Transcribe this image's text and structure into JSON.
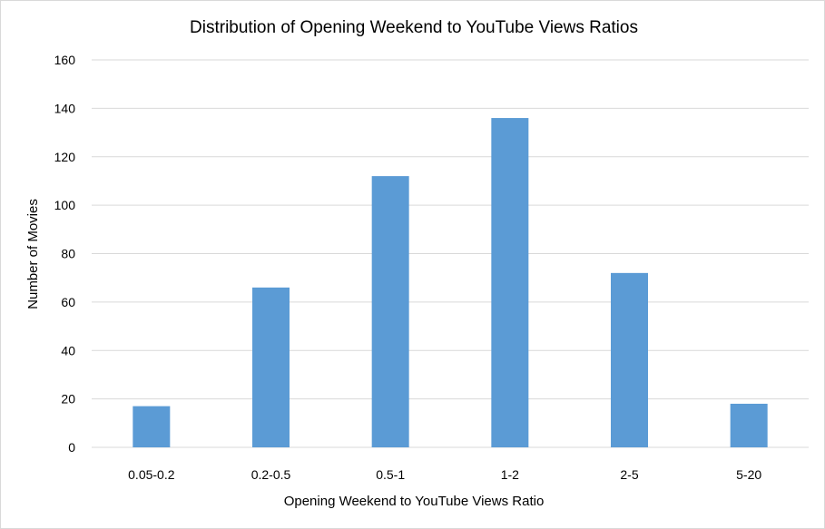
{
  "chart_data": {
    "type": "bar",
    "title": "Distribution of Opening Weekend to YouTube Views Ratios",
    "xlabel": "Opening Weekend to YouTube Views Ratio",
    "ylabel": "Number of Movies",
    "categories": [
      "0.05-0.2",
      "0.2-0.5",
      "0.5-1",
      "1-2",
      "2-5",
      "5-20"
    ],
    "values": [
      17,
      66,
      112,
      136,
      72,
      18
    ],
    "ylim": [
      0,
      160
    ],
    "yticks": [
      0,
      20,
      40,
      60,
      80,
      100,
      120,
      140,
      160
    ],
    "grid": true,
    "legend": "none",
    "bar_color": "#5b9bd5",
    "grid_color": "#d9d9d9"
  }
}
